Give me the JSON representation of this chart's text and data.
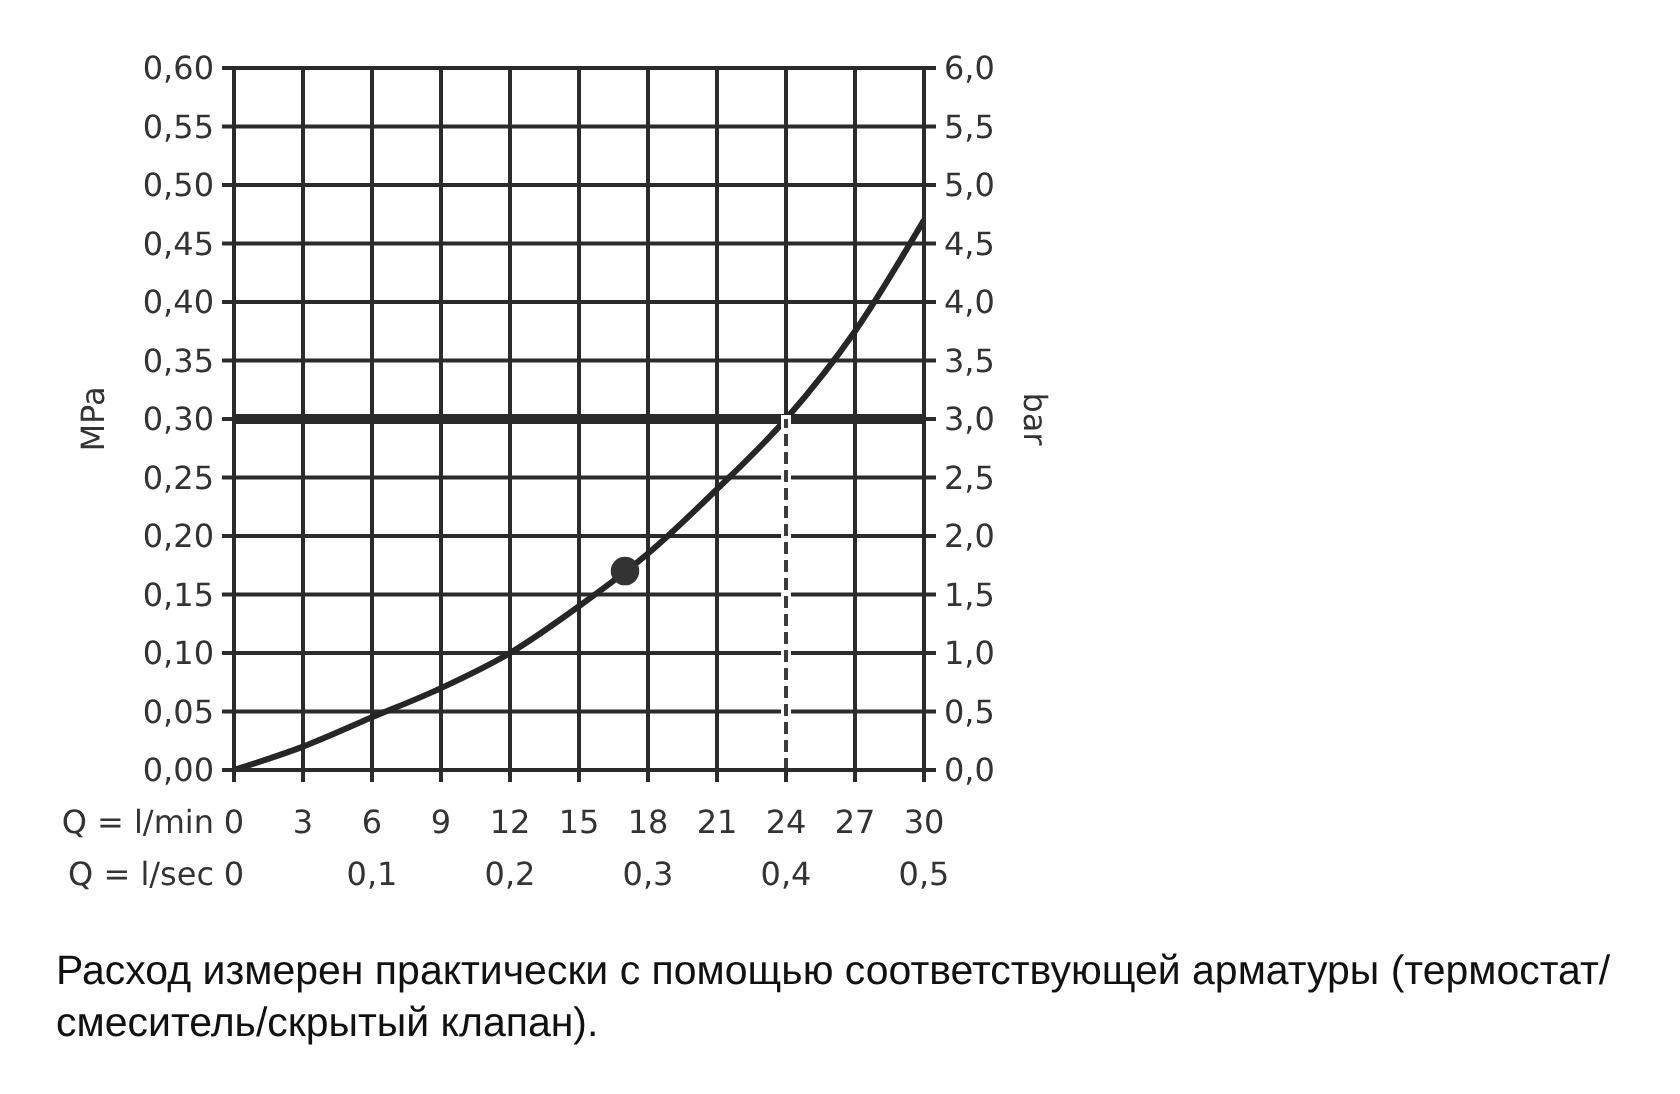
{
  "chart_data": {
    "type": "line",
    "xlabel": "Q = l/min",
    "x2label": "Q = l/sec",
    "ylabel": "MPa",
    "y2label": "bar",
    "series": [
      {
        "type": "line",
        "color": "#262626",
        "x": [
          0,
          3,
          6,
          9,
          12,
          15,
          18,
          21,
          24,
          27,
          30
        ],
        "values": [
          0,
          0.02,
          0.045,
          0.07,
          0.1,
          0.14,
          0.185,
          0.24,
          0.3,
          0.375,
          0.47
        ]
      },
      {
        "type": "scatter",
        "color": "#333333",
        "marker": "circle",
        "x": [
          17
        ],
        "values": [
          0.17
        ]
      },
      {
        "type": "line",
        "color": "#3a3a3a",
        "line_style": "dashed",
        "x": [
          24,
          24
        ],
        "values": [
          0,
          0.3
        ]
      }
    ],
    "ref_lines": [
      {
        "axis": "y",
        "value": 0.3,
        "color": "#2a2a2a"
      }
    ],
    "xlim": [
      0,
      30
    ],
    "xticks": [
      0,
      3,
      6,
      9,
      12,
      15,
      18,
      21,
      24,
      27,
      30
    ],
    "x2lim": [
      0,
      0.5
    ],
    "x2ticks": [
      0,
      {
        "value": 0.1,
        "label": "0,1"
      },
      {
        "value": 0.2,
        "label": "0,2"
      },
      {
        "value": 0.3,
        "label": "0,3"
      },
      {
        "value": 0.4,
        "label": "0,4"
      },
      {
        "value": 0.5,
        "label": "0,5"
      }
    ],
    "ylim": [
      0,
      0.6
    ],
    "yticks": [
      {
        "value": 0,
        "label": "0,00"
      },
      {
        "value": 0.05,
        "label": "0,05"
      },
      {
        "value": 0.1,
        "label": "0,10"
      },
      {
        "value": 0.15,
        "label": "0,15"
      },
      {
        "value": 0.2,
        "label": "0,20"
      },
      {
        "value": 0.25,
        "label": "0,25"
      },
      {
        "value": 0.3,
        "label": "0,30"
      },
      {
        "value": 0.35,
        "label": "0,35"
      },
      {
        "value": 0.4,
        "label": "0,40"
      },
      {
        "value": 0.45,
        "label": "0,45"
      },
      {
        "value": 0.5,
        "label": "0,50"
      },
      {
        "value": 0.55,
        "label": "0,55"
      },
      {
        "value": 0.6,
        "label": "0,60"
      }
    ],
    "y2lim": [
      0,
      6
    ],
    "y2ticks": [
      {
        "value": 0,
        "label": "0,0"
      },
      {
        "value": 0.5,
        "label": "0,5"
      },
      {
        "value": 1,
        "label": "1,0"
      },
      {
        "value": 1.5,
        "label": "1,5"
      },
      {
        "value": 2,
        "label": "2,0"
      },
      {
        "value": 2.5,
        "label": "2,5"
      },
      {
        "value": 3,
        "label": "3,0"
      },
      {
        "value": 3.5,
        "label": "3,5"
      },
      {
        "value": 4,
        "label": "4,0"
      },
      {
        "value": 4.5,
        "label": "4,5"
      },
      {
        "value": 5,
        "label": "5,0"
      },
      {
        "value": 5.5,
        "label": "5,5"
      },
      {
        "value": 6,
        "label": "6,0"
      }
    ],
    "grid": true,
    "annotations": [
      "Расход измерен практически с помощью соответствующей арматуры (термостат/смеситель/скрытый клапан)."
    ]
  }
}
